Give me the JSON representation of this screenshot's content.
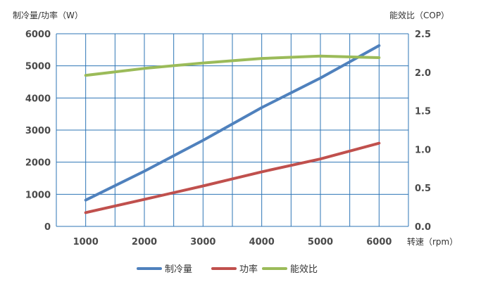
{
  "chart_data": {
    "type": "line",
    "title": "",
    "xlabel": "转速（rpm）",
    "ylabel_left": "制冷量/功率（W）",
    "ylabel_right": "能效比（COP）",
    "categories": [
      1000,
      2000,
      3000,
      4000,
      5000,
      6000
    ],
    "x_ticks": [
      "1000",
      "2000",
      "3000",
      "4000",
      "5000",
      "6000"
    ],
    "y_left_ticks": [
      "0",
      "1000",
      "2000",
      "3000",
      "4000",
      "5000",
      "6000"
    ],
    "y_right_ticks": [
      "0.0",
      "0.5",
      "1.0",
      "1.5",
      "2.0",
      "2.5"
    ],
    "ylim_left": [
      0,
      6000
    ],
    "ylim_right": [
      0,
      2.5
    ],
    "grid": true,
    "legend_position": "bottom",
    "series": [
      {
        "name": "制冷量",
        "axis": "left",
        "color": "#4f81bd",
        "values": [
          820,
          1720,
          2680,
          3700,
          4620,
          5630
        ]
      },
      {
        "name": "功率",
        "axis": "left",
        "color": "#c0504d",
        "values": [
          430,
          840,
          1260,
          1700,
          2100,
          2590
        ]
      },
      {
        "name": "能效比",
        "axis": "right",
        "color": "#9bbb59",
        "values": [
          1.96,
          2.05,
          2.12,
          2.18,
          2.21,
          2.19
        ]
      }
    ]
  }
}
